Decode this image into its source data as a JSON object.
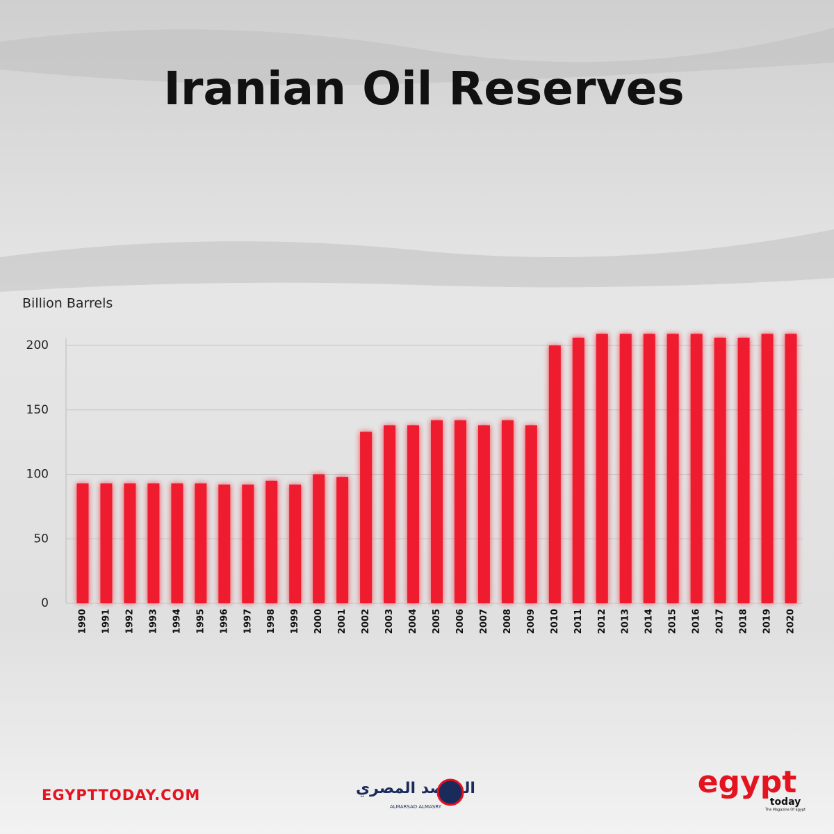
{
  "chart_data": {
    "type": "bar",
    "title": "Iranian Oil Reserves",
    "y_label": "Billion Barrels",
    "categories": [
      "1990",
      "1991",
      "1992",
      "1993",
      "1994",
      "1995",
      "1996",
      "1997",
      "1998",
      "1999",
      "2000",
      "2001",
      "2002",
      "2003",
      "2004",
      "2005",
      "2006",
      "2007",
      "2008",
      "2009",
      "2010",
      "2011",
      "2012",
      "2013",
      "2014",
      "2015",
      "2016",
      "2017",
      "2018",
      "2019",
      "2020"
    ],
    "values": [
      93,
      93,
      93,
      93,
      93,
      93,
      92,
      92,
      95,
      92,
      100,
      98,
      133,
      138,
      138,
      142,
      142,
      138,
      142,
      138,
      200,
      206,
      209,
      209,
      209,
      209,
      209,
      206,
      206,
      209,
      209
    ],
    "color": "#ee1c2e",
    "ylim": [
      0,
      200
    ],
    "yticks": [
      0,
      50,
      100,
      150,
      200
    ],
    "grid": true
  },
  "branding": {
    "website": "EGYPTTODAY.COM",
    "logo_main": "egypt",
    "logo_sub": "today",
    "logo_tagline": "The Magazine Of Egypt",
    "partner_arabic": "المرصد المصري",
    "partner_latin": "ALMARSAD ALMASRY"
  }
}
